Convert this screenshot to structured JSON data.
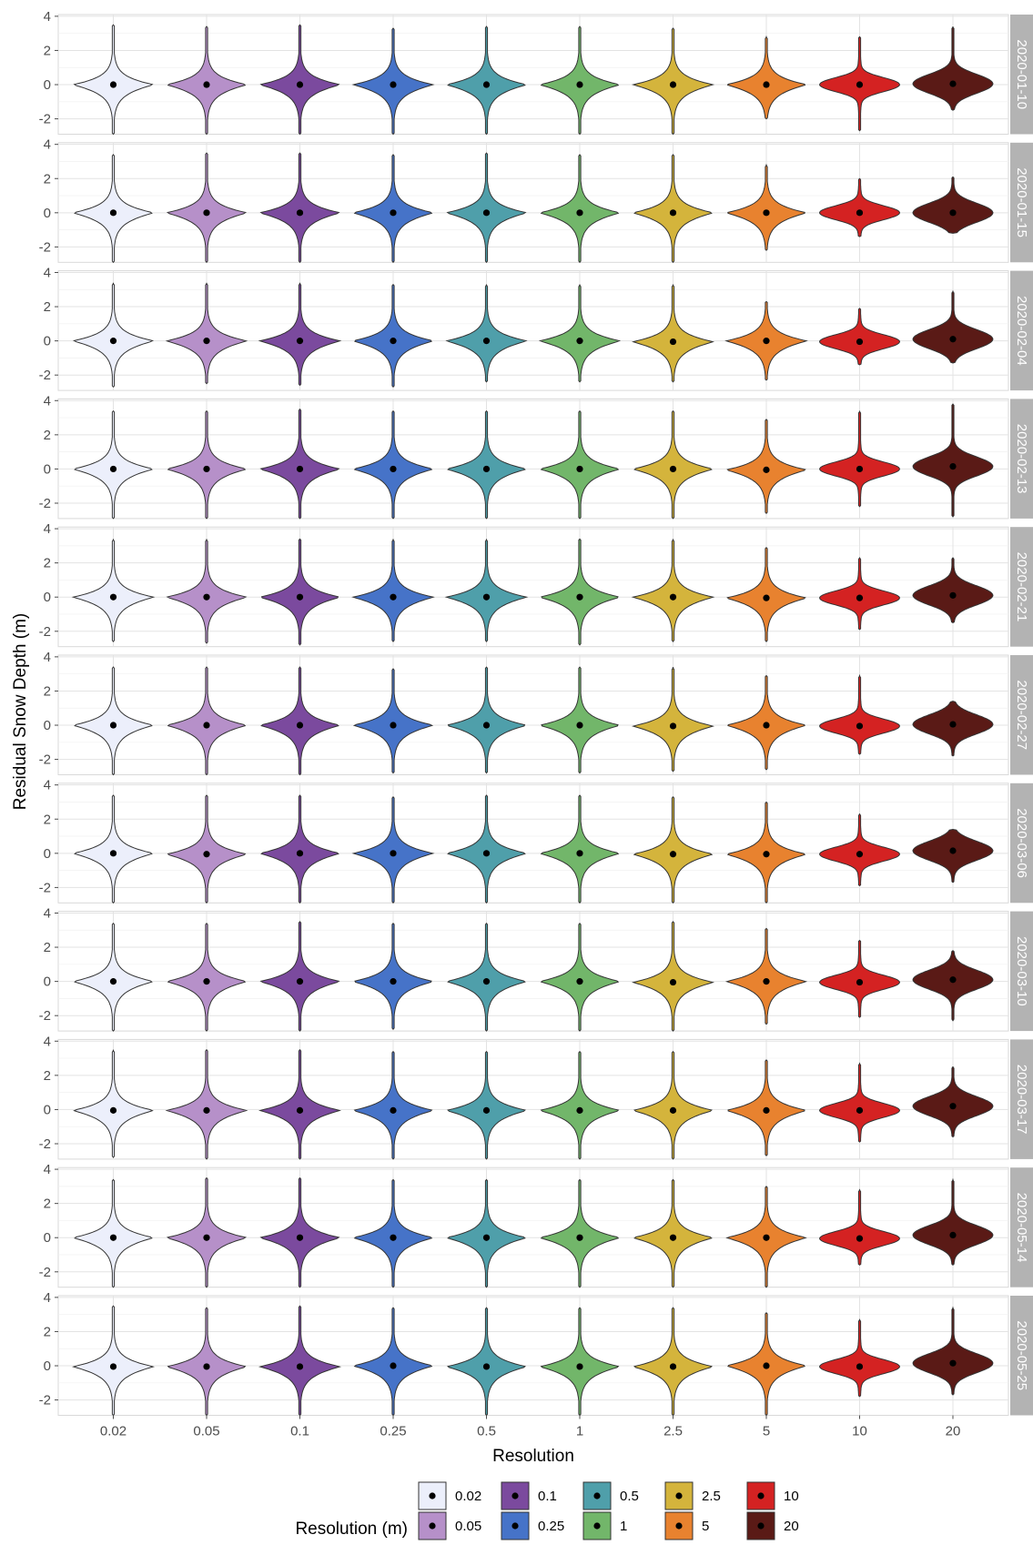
{
  "chart_data": {
    "type": "violin",
    "xlabel": "Resolution",
    "ylabel": "Residual Snow Depth (m)",
    "ylim": [
      -2.9,
      4.1
    ],
    "y_ticks": [
      -2,
      0,
      2,
      4
    ],
    "categories": [
      "0.02",
      "0.05",
      "0.1",
      "0.25",
      "0.5",
      "1",
      "2.5",
      "5",
      "10",
      "20"
    ],
    "colors": [
      "#eceffb",
      "#b690c9",
      "#7b4a9e",
      "#4673c8",
      "#4f9faa",
      "#72b66a",
      "#d4b43c",
      "#e8822f",
      "#d42222",
      "#5a1a16"
    ],
    "grid": true,
    "legend": {
      "title": "Resolution (m)",
      "position": "bottom",
      "labels": [
        "0.02",
        "0.05",
        "0.1",
        "0.25",
        "0.5",
        "1",
        "2.5",
        "5",
        "10",
        "20"
      ]
    },
    "panels": [
      {
        "date": "2020-01-10",
        "median": [
          0,
          0,
          0,
          0,
          0,
          0,
          0,
          0,
          0,
          0.05
        ],
        "min": [
          -2.9,
          -2.9,
          -2.9,
          -2.9,
          -2.9,
          -2.9,
          -2.9,
          -2.0,
          -2.7,
          -1.5
        ],
        "max": [
          3.5,
          3.4,
          3.5,
          3.3,
          3.4,
          3.4,
          3.3,
          2.8,
          2.8,
          3.4
        ]
      },
      {
        "date": "2020-01-15",
        "median": [
          0,
          0,
          0,
          0,
          0,
          0,
          0,
          0,
          0,
          0
        ],
        "min": [
          -2.9,
          -2.9,
          -2.9,
          -2.9,
          -2.9,
          -2.9,
          -2.9,
          -2.2,
          -1.4,
          -1.2
        ],
        "max": [
          3.4,
          3.5,
          3.5,
          3.4,
          3.5,
          3.4,
          3.4,
          2.8,
          2.0,
          2.1
        ]
      },
      {
        "date": "2020-02-04",
        "median": [
          0,
          0,
          0,
          0,
          0,
          0,
          -0.05,
          0,
          -0.05,
          0.1
        ],
        "min": [
          -2.7,
          -2.5,
          -2.6,
          -2.7,
          -2.4,
          -2.4,
          -2.4,
          -2.3,
          -1.4,
          -1.3
        ],
        "max": [
          3.4,
          3.4,
          3.4,
          3.3,
          3.3,
          3.3,
          3.3,
          2.3,
          1.9,
          2.9
        ]
      },
      {
        "date": "2020-02-13",
        "median": [
          0,
          0,
          0,
          0,
          0,
          0,
          0,
          -0.05,
          0,
          0.15
        ],
        "min": [
          -2.9,
          -2.9,
          -2.9,
          -2.9,
          -2.9,
          -2.9,
          -2.9,
          -2.6,
          -2.2,
          -2.8
        ],
        "max": [
          3.4,
          3.4,
          3.5,
          3.4,
          3.4,
          3.4,
          3.4,
          2.9,
          3.4,
          3.8
        ]
      },
      {
        "date": "2020-02-21",
        "median": [
          0,
          0,
          0,
          0,
          0,
          0,
          0,
          -0.05,
          -0.05,
          0.1
        ],
        "min": [
          -2.6,
          -2.7,
          -2.8,
          -2.6,
          -2.6,
          -2.8,
          -2.6,
          -2.6,
          -1.9,
          -1.5
        ],
        "max": [
          3.4,
          3.4,
          3.4,
          3.4,
          3.4,
          3.4,
          3.4,
          2.9,
          2.3,
          2.3
        ]
      },
      {
        "date": "2020-02-27",
        "median": [
          0,
          0,
          0,
          0,
          0,
          0,
          -0.05,
          0,
          -0.05,
          0.05
        ],
        "min": [
          -2.9,
          -2.9,
          -2.9,
          -2.8,
          -2.8,
          -2.8,
          -2.7,
          -2.6,
          -1.7,
          -1.8
        ],
        "max": [
          3.4,
          3.4,
          3.4,
          3.3,
          3.4,
          3.4,
          3.4,
          2.9,
          2.9,
          1.4
        ]
      },
      {
        "date": "2020-03-06",
        "median": [
          0,
          -0.05,
          0,
          0,
          0,
          0,
          -0.05,
          -0.05,
          -0.05,
          0.15
        ],
        "min": [
          -2.9,
          -2.9,
          -2.9,
          -2.9,
          -2.9,
          -2.9,
          -2.9,
          -2.9,
          -1.9,
          -1.7
        ],
        "max": [
          3.4,
          3.4,
          3.4,
          3.3,
          3.4,
          3.4,
          3.3,
          3.0,
          2.3,
          1.4
        ]
      },
      {
        "date": "2020-03-10",
        "median": [
          0,
          0,
          0,
          0,
          0,
          0,
          -0.05,
          0,
          -0.05,
          0.1
        ],
        "min": [
          -2.9,
          -2.9,
          -2.9,
          -2.8,
          -2.9,
          -2.9,
          -2.9,
          -2.5,
          -2.1,
          -2.3
        ],
        "max": [
          3.4,
          3.4,
          3.5,
          3.4,
          3.4,
          3.4,
          3.5,
          3.1,
          2.4,
          1.8
        ]
      },
      {
        "date": "2020-03-17",
        "median": [
          -0.05,
          -0.05,
          -0.05,
          -0.05,
          -0.05,
          -0.05,
          -0.05,
          -0.05,
          -0.05,
          0.2
        ],
        "min": [
          -2.8,
          -2.9,
          -2.9,
          -2.9,
          -2.9,
          -2.9,
          -2.9,
          -2.7,
          -1.9,
          -1.6
        ],
        "max": [
          3.5,
          3.5,
          3.5,
          3.4,
          3.4,
          3.4,
          3.4,
          2.9,
          2.7,
          2.5
        ]
      },
      {
        "date": "2020-05-14",
        "median": [
          0,
          0,
          0,
          0,
          0,
          0,
          0,
          0,
          -0.05,
          0.15
        ],
        "min": [
          -2.9,
          -2.9,
          -2.9,
          -2.9,
          -2.9,
          -2.9,
          -2.9,
          -2.9,
          -1.6,
          -1.6
        ],
        "max": [
          3.4,
          3.5,
          3.5,
          3.4,
          3.4,
          3.4,
          3.4,
          3.0,
          2.8,
          3.4
        ]
      },
      {
        "date": "2020-05-25",
        "median": [
          -0.05,
          -0.05,
          -0.05,
          0,
          -0.05,
          -0.05,
          -0.05,
          0,
          -0.05,
          0.15
        ],
        "min": [
          -2.9,
          -2.9,
          -2.9,
          -2.9,
          -2.9,
          -2.9,
          -2.9,
          -2.9,
          -1.8,
          -1.7
        ],
        "max": [
          3.5,
          3.4,
          3.5,
          3.4,
          3.4,
          3.4,
          3.4,
          3.1,
          2.7,
          3.4
        ]
      }
    ]
  }
}
